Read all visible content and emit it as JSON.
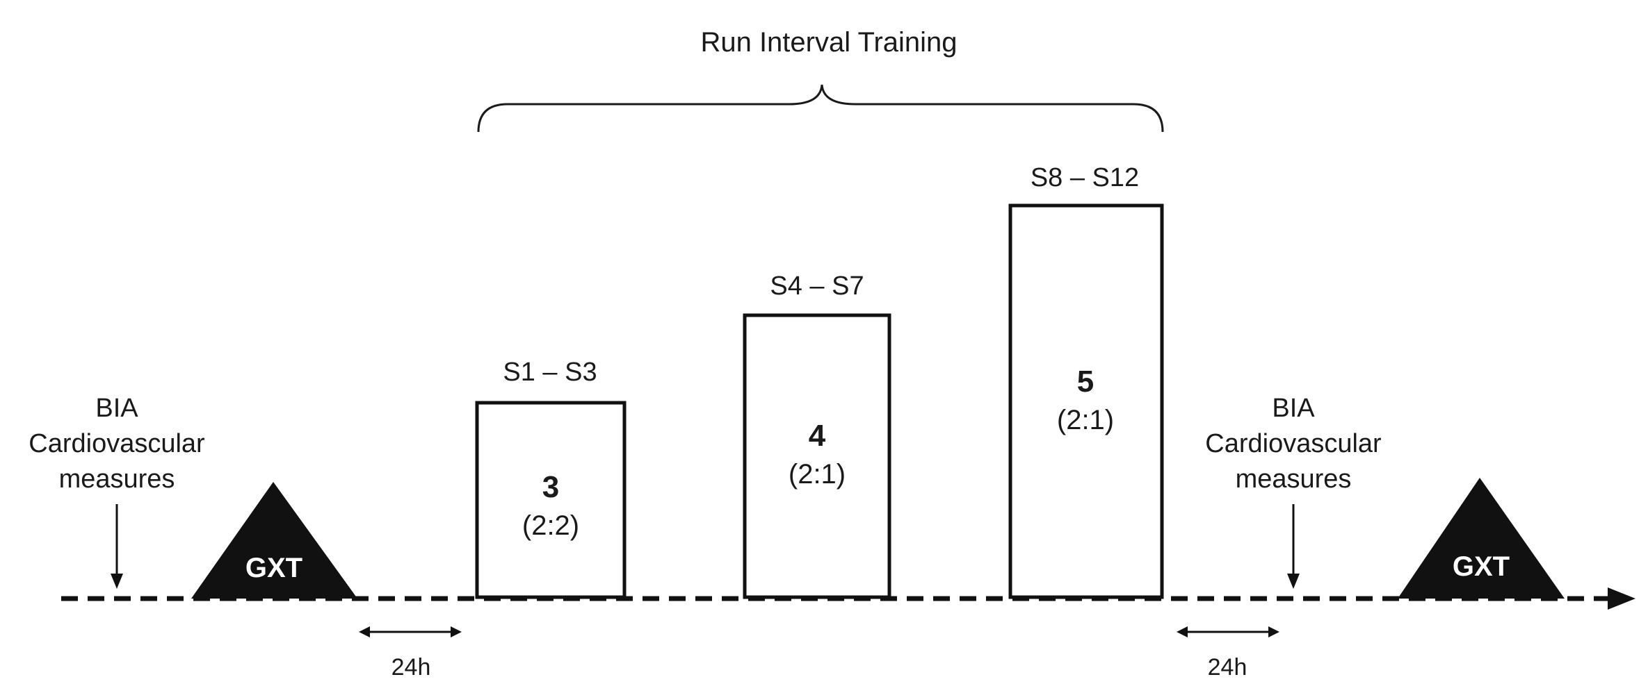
{
  "title": "Run Interval Training",
  "pre_measures": {
    "line1": "BIA",
    "line2": "Cardiovascular",
    "line3": "measures"
  },
  "post_measures": {
    "line1": "BIA",
    "line2": "Cardiovascular",
    "line3": "measures"
  },
  "gxt_label": "GXT",
  "interval_label": "24h",
  "blocks": [
    {
      "sessions": "S1 – S3",
      "count": "3",
      "ratio": "(2:2)"
    },
    {
      "sessions": "S4 – S7",
      "count": "4",
      "ratio": "(2:1)"
    },
    {
      "sessions": "S8 – S12",
      "count": "5",
      "ratio": "(2:1)"
    }
  ]
}
